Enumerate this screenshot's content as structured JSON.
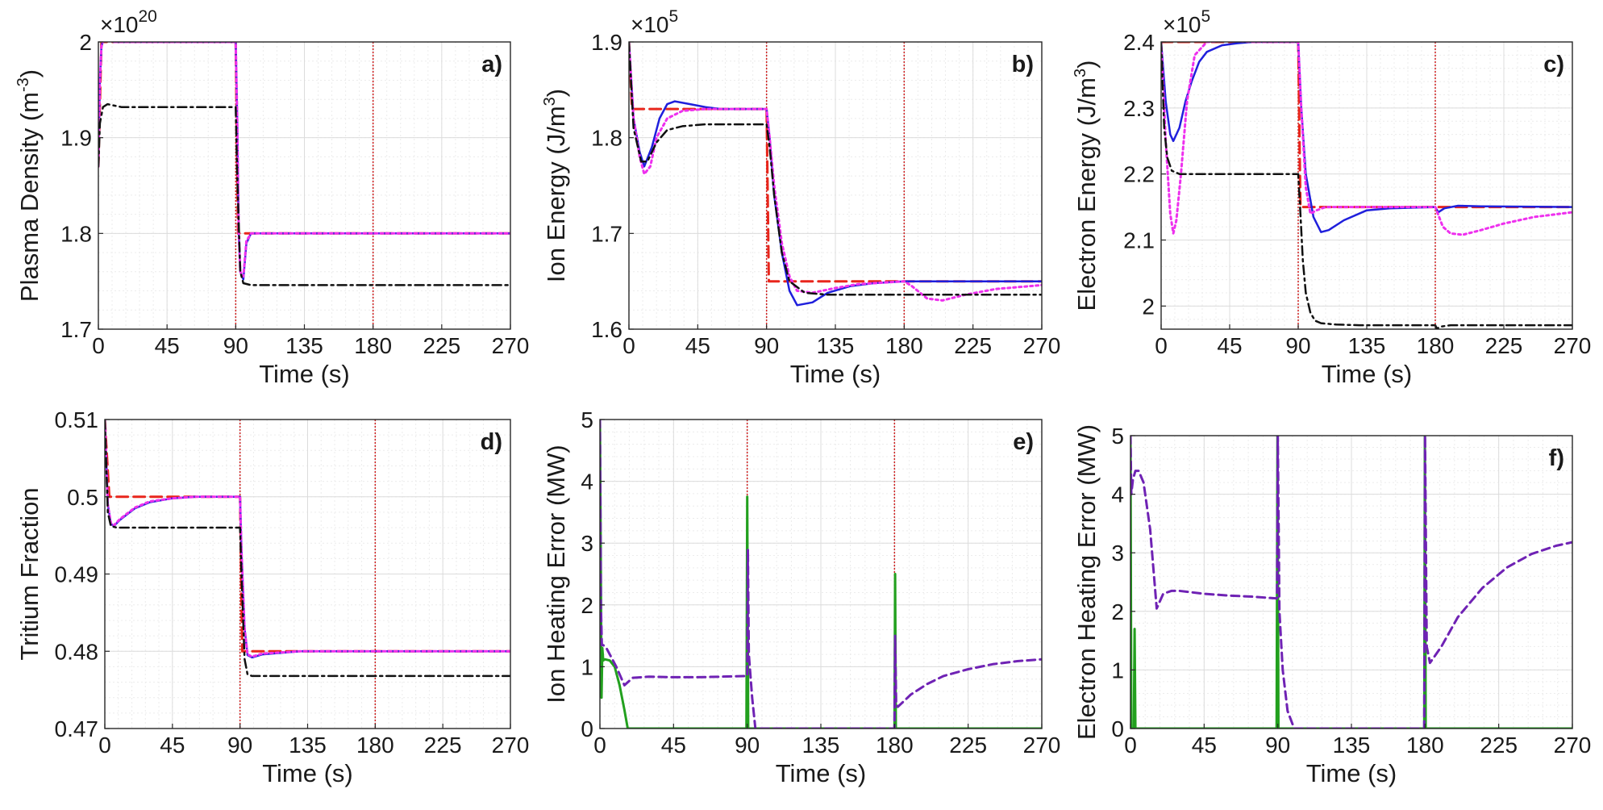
{
  "colors": {
    "reference": "#e8261c",
    "controller_blue": "#1f1fdc",
    "controller_magenta": "#ee30ee",
    "black_dashdot": "#111111",
    "green": "#22a01e",
    "purple": "#6f22b4",
    "event_line": "#d02020"
  },
  "chart_data": [
    {
      "id": "a",
      "type": "line",
      "panel_label": "a)",
      "xlabel": "Time (s)",
      "ylabel_parts": [
        "Plasma Density (m",
        "-3",
        ")"
      ],
      "exponent_label": [
        "×10",
        "20"
      ],
      "xlim": [
        0,
        270
      ],
      "ylim": [
        1.7,
        2.0
      ],
      "xticks": [
        0,
        45,
        90,
        135,
        180,
        225,
        270
      ],
      "yticks": [
        1.7,
        1.8,
        1.9,
        2.0
      ],
      "ytick_labels": [
        "1.7",
        "1.8",
        "1.9",
        "2"
      ],
      "event_lines": [
        90,
        180
      ],
      "series": [
        {
          "name": "reference",
          "color": "#e8261c",
          "dash": "14,7",
          "width": 3,
          "x": [
            0,
            2,
            90,
            91.5,
            270
          ],
          "y": [
            1.87,
            2.0,
            2.0,
            1.8,
            1.8
          ]
        },
        {
          "name": "controller_blue",
          "color": "#1f1fdc",
          "dash": "",
          "width": 2.5,
          "x": [
            0,
            1,
            2,
            4,
            6,
            10,
            20,
            90,
            91,
            92,
            93,
            95,
            97,
            100,
            270
          ],
          "y": [
            1.87,
            1.96,
            1.995,
            2.007,
            2.003,
            2.0,
            2.0,
            2.0,
            1.92,
            1.8,
            1.76,
            1.752,
            1.79,
            1.8,
            1.8
          ]
        },
        {
          "name": "controller_magenta",
          "color": "#ee30ee",
          "dash": "3,4",
          "width": 3,
          "x": [
            0,
            1,
            2,
            4,
            6,
            10,
            20,
            90,
            91,
            92,
            93,
            95,
            97,
            100,
            270
          ],
          "y": [
            1.87,
            1.96,
            1.995,
            2.005,
            2.002,
            2.0,
            2.0,
            2.0,
            1.92,
            1.8,
            1.76,
            1.755,
            1.792,
            1.8,
            1.8
          ]
        },
        {
          "name": "black_dashdot",
          "color": "#111111",
          "dash": "11,5,3,5",
          "width": 2.5,
          "x": [
            0,
            1,
            3,
            6,
            15,
            90,
            91,
            93,
            95,
            100,
            270
          ],
          "y": [
            1.87,
            1.915,
            1.932,
            1.935,
            1.932,
            1.932,
            1.86,
            1.76,
            1.748,
            1.746,
            1.746
          ]
        }
      ]
    },
    {
      "id": "b",
      "type": "line",
      "panel_label": "b)",
      "xlabel": "Time (s)",
      "ylabel_parts": [
        "Ion Energy (J/m",
        "3",
        ")"
      ],
      "exponent_label": [
        "×10",
        "5"
      ],
      "xlim": [
        0,
        270
      ],
      "ylim": [
        1.6,
        1.9
      ],
      "xticks": [
        0,
        45,
        90,
        135,
        180,
        225,
        270
      ],
      "yticks": [
        1.6,
        1.7,
        1.8,
        1.9
      ],
      "ytick_labels": [
        "1.6",
        "1.7",
        "1.8",
        "1.9"
      ],
      "event_lines": [
        90,
        180
      ],
      "series": [
        {
          "name": "reference",
          "color": "#e8261c",
          "dash": "14,7",
          "width": 3,
          "x": [
            0,
            2,
            90,
            91.5,
            270
          ],
          "y": [
            1.9,
            1.83,
            1.83,
            1.65,
            1.65
          ]
        },
        {
          "name": "controller_blue",
          "color": "#1f1fdc",
          "dash": "",
          "width": 2.5,
          "x": [
            0,
            3,
            7,
            10,
            15,
            20,
            25,
            30,
            40,
            50,
            60,
            90,
            92,
            95,
            100,
            105,
            110,
            120,
            130,
            145,
            160,
            180,
            270
          ],
          "y": [
            1.9,
            1.82,
            1.785,
            1.77,
            1.79,
            1.82,
            1.835,
            1.838,
            1.835,
            1.832,
            1.83,
            1.83,
            1.8,
            1.74,
            1.68,
            1.64,
            1.625,
            1.628,
            1.638,
            1.645,
            1.648,
            1.65,
            1.65
          ]
        },
        {
          "name": "controller_magenta",
          "color": "#ee30ee",
          "dash": "3,4",
          "width": 3,
          "x": [
            0,
            3,
            7,
            10,
            14,
            18,
            25,
            35,
            50,
            90,
            92,
            95,
            100,
            105,
            110,
            120,
            135,
            150,
            180,
            185,
            195,
            205,
            220,
            240,
            270
          ],
          "y": [
            1.9,
            1.82,
            1.78,
            1.762,
            1.77,
            1.8,
            1.82,
            1.828,
            1.83,
            1.83,
            1.8,
            1.75,
            1.69,
            1.655,
            1.64,
            1.638,
            1.643,
            1.647,
            1.65,
            1.645,
            1.632,
            1.63,
            1.636,
            1.642,
            1.646
          ]
        },
        {
          "name": "black_dashdot",
          "color": "#111111",
          "dash": "11,5,3,5",
          "width": 2.5,
          "x": [
            0,
            3,
            8,
            12,
            18,
            25,
            35,
            50,
            90,
            92,
            95,
            100,
            105,
            115,
            130,
            180,
            270
          ],
          "y": [
            1.9,
            1.81,
            1.775,
            1.775,
            1.795,
            1.808,
            1.812,
            1.814,
            1.814,
            1.79,
            1.74,
            1.68,
            1.65,
            1.638,
            1.636,
            1.636,
            1.636
          ]
        }
      ]
    },
    {
      "id": "c",
      "type": "line",
      "panel_label": "c)",
      "xlabel": "Time (s)",
      "ylabel_parts": [
        "Electron Energy (J/m",
        "3",
        ")"
      ],
      "exponent_label": [
        "×10",
        "5"
      ],
      "xlim": [
        0,
        270
      ],
      "ylim": [
        1.965,
        2.4
      ],
      "xticks": [
        0,
        45,
        90,
        135,
        180,
        225,
        270
      ],
      "yticks": [
        2.0,
        2.1,
        2.2,
        2.3,
        2.4
      ],
      "ytick_labels": [
        "2",
        "2.1",
        "2.2",
        "2.3",
        "2.4"
      ],
      "event_lines": [
        90,
        180
      ],
      "series": [
        {
          "name": "reference",
          "color": "#e8261c",
          "dash": "14,7",
          "width": 3,
          "x": [
            0,
            90,
            91.5,
            270
          ],
          "y": [
            2.4,
            2.4,
            2.15,
            2.15
          ]
        },
        {
          "name": "controller_blue",
          "color": "#1f1fdc",
          "dash": "",
          "width": 2.5,
          "x": [
            0,
            3,
            6,
            8,
            12,
            16,
            20,
            25,
            30,
            40,
            50,
            60,
            90,
            92,
            95,
            100,
            105,
            110,
            120,
            135,
            150,
            180,
            182,
            186,
            195,
            210,
            270
          ],
          "y": [
            2.4,
            2.31,
            2.26,
            2.25,
            2.27,
            2.31,
            2.34,
            2.37,
            2.385,
            2.395,
            2.398,
            2.4,
            2.4,
            2.3,
            2.2,
            2.135,
            2.112,
            2.115,
            2.13,
            2.145,
            2.148,
            2.15,
            2.142,
            2.148,
            2.152,
            2.151,
            2.15
          ]
        },
        {
          "name": "controller_magenta",
          "color": "#ee30ee",
          "dash": "3,4",
          "width": 3,
          "x": [
            0,
            3,
            6,
            8,
            10,
            13,
            17,
            22,
            30,
            45,
            60,
            90,
            92,
            95,
            98,
            102,
            108,
            120,
            150,
            180,
            185,
            190,
            198,
            210,
            225,
            245,
            270
          ],
          "y": [
            2.4,
            2.25,
            2.14,
            2.11,
            2.13,
            2.2,
            2.31,
            2.38,
            2.4,
            2.402,
            2.4,
            2.4,
            2.3,
            2.18,
            2.14,
            2.145,
            2.15,
            2.15,
            2.15,
            2.15,
            2.12,
            2.11,
            2.108,
            2.115,
            2.125,
            2.135,
            2.142
          ]
        },
        {
          "name": "black_dashdot",
          "color": "#111111",
          "dash": "11,5,3,5",
          "width": 2.5,
          "x": [
            0,
            2,
            4,
            7,
            12,
            20,
            90,
            91,
            93,
            95,
            98,
            101,
            105,
            115,
            130,
            180,
            181,
            184,
            190,
            270
          ],
          "y": [
            2.4,
            2.27,
            2.225,
            2.205,
            2.2,
            2.2,
            2.2,
            2.16,
            2.07,
            2.02,
            1.99,
            1.978,
            1.974,
            1.972,
            1.971,
            1.971,
            1.966,
            1.969,
            1.971,
            1.971
          ]
        }
      ]
    },
    {
      "id": "d",
      "type": "line",
      "panel_label": "d)",
      "xlabel": "Time (s)",
      "ylabel_parts": [
        "Tritium Fraction"
      ],
      "exponent_label": [],
      "xlim": [
        0,
        270
      ],
      "ylim": [
        0.47,
        0.51
      ],
      "xticks": [
        0,
        45,
        90,
        135,
        180,
        225,
        270
      ],
      "yticks": [
        0.47,
        0.48,
        0.49,
        0.5,
        0.51
      ],
      "ytick_labels": [
        "0.47",
        "0.48",
        "0.49",
        "0.5",
        "0.51"
      ],
      "event_lines": [
        90,
        180
      ],
      "series": [
        {
          "name": "reference",
          "color": "#e8261c",
          "dash": "14,7",
          "width": 3,
          "x": [
            0,
            3,
            90,
            91.5,
            270
          ],
          "y": [
            0.51,
            0.5,
            0.5,
            0.48,
            0.48
          ]
        },
        {
          "name": "controller_blue",
          "color": "#1f1fdc",
          "dash": "",
          "width": 2.5,
          "x": [
            0,
            2,
            4,
            6,
            10,
            20,
            30,
            45,
            60,
            75,
            90,
            91,
            93,
            95,
            98,
            105,
            130,
            270
          ],
          "y": [
            0.51,
            0.499,
            0.4965,
            0.4962,
            0.497,
            0.4985,
            0.4993,
            0.4998,
            0.5,
            0.5,
            0.5,
            0.493,
            0.483,
            0.4795,
            0.4792,
            0.4796,
            0.48,
            0.48
          ]
        },
        {
          "name": "controller_magenta",
          "color": "#ee30ee",
          "dash": "3,4",
          "width": 3,
          "x": [
            0,
            2,
            4,
            6,
            10,
            20,
            30,
            45,
            60,
            75,
            90,
            91,
            93,
            95,
            98,
            105,
            130,
            270
          ],
          "y": [
            0.51,
            0.499,
            0.4966,
            0.4963,
            0.4971,
            0.4986,
            0.4994,
            0.4998,
            0.5,
            0.5,
            0.5,
            0.493,
            0.483,
            0.4796,
            0.4793,
            0.4797,
            0.48,
            0.48
          ]
        },
        {
          "name": "black_dashdot",
          "color": "#111111",
          "dash": "11,5,3,5",
          "width": 2.5,
          "x": [
            0,
            2,
            4,
            8,
            90,
            91,
            93,
            95,
            98,
            270
          ],
          "y": [
            0.51,
            0.498,
            0.4962,
            0.496,
            0.496,
            0.49,
            0.479,
            0.477,
            0.4768,
            0.4768
          ]
        }
      ]
    },
    {
      "id": "e",
      "type": "line",
      "panel_label": "e)",
      "xlabel": "Time (s)",
      "ylabel_parts": [
        "Ion Heating Error (MW)"
      ],
      "exponent_label": [],
      "xlim": [
        0,
        270
      ],
      "ylim": [
        0,
        5
      ],
      "xticks": [
        0,
        45,
        90,
        135,
        180,
        225,
        270
      ],
      "yticks": [
        0,
        1,
        2,
        3,
        4,
        5
      ],
      "ytick_labels": [
        "0",
        "1",
        "2",
        "3",
        "4",
        "5"
      ],
      "event_lines": [
        90,
        180
      ],
      "series": [
        {
          "name": "green",
          "color": "#22a01e",
          "dash": "",
          "width": 3,
          "x": [
            0,
            0.5,
            1,
            1.5,
            2,
            3,
            6,
            9,
            12,
            15,
            17,
            89.5,
            90,
            90.6,
            91.2,
            180,
            180.4,
            180.8,
            181.5,
            270
          ],
          "y": [
            5,
            3,
            0.5,
            1.3,
            1.1,
            1.12,
            1.1,
            1.0,
            0.7,
            0.3,
            0,
            0,
            3.75,
            0,
            0,
            0,
            2.5,
            0,
            0,
            0
          ]
        },
        {
          "name": "purple",
          "color": "#6f22b4",
          "dash": "10,6",
          "width": 3,
          "x": [
            0,
            0.6,
            1.2,
            2,
            4,
            6,
            10,
            15,
            20,
            30,
            45,
            60,
            75,
            90,
            90.4,
            91,
            93,
            95,
            100,
            180,
            180.4,
            181,
            182,
            190,
            200,
            210,
            225,
            240,
            255,
            270
          ],
          "y": [
            5,
            2,
            1.35,
            1.35,
            1.3,
            1.2,
            1.0,
            0.7,
            0.82,
            0.84,
            0.83,
            0.83,
            0.84,
            0.85,
            2.9,
            1.2,
            0.5,
            0,
            0,
            0,
            1.5,
            0.4,
            0.35,
            0.55,
            0.72,
            0.85,
            0.96,
            1.04,
            1.09,
            1.12
          ]
        }
      ]
    },
    {
      "id": "f",
      "type": "line",
      "panel_label": "f)",
      "xlabel": "Time (s)",
      "ylabel_parts": [
        "Electron Heating Error (MW)"
      ],
      "exponent_label": [],
      "xlim": [
        0,
        270
      ],
      "ylim": [
        0,
        5
      ],
      "xticks": [
        0,
        45,
        90,
        135,
        180,
        225,
        270
      ],
      "yticks": [
        0,
        1,
        2,
        3,
        4,
        5
      ],
      "ytick_labels": [
        "0",
        "1",
        "2",
        "3",
        "4",
        "5"
      ],
      "event_lines": [],
      "series": [
        {
          "name": "green",
          "color": "#22a01e",
          "dash": "",
          "width": 3,
          "x": [
            0,
            0.5,
            1,
            2,
            2.5,
            3,
            3.5,
            89.3,
            89.8,
            90.4,
            91,
            179.5,
            179.9,
            180.4,
            181,
            270
          ],
          "y": [
            5,
            0,
            0,
            0,
            1.7,
            0,
            0,
            0,
            5,
            0,
            0,
            0,
            5,
            0,
            0,
            0
          ]
        },
        {
          "name": "purple",
          "color": "#6f22b4",
          "dash": "10,6",
          "width": 3,
          "x": [
            0,
            0.5,
            1.5,
            3,
            5,
            8,
            12,
            16,
            20,
            25,
            30,
            45,
            60,
            75,
            89.5,
            90,
            91,
            93,
            96,
            100,
            179.5,
            180,
            181,
            183,
            190,
            200,
            215,
            230,
            245,
            260,
            270
          ],
          "y": [
            5,
            4.0,
            4.25,
            4.4,
            4.4,
            4.2,
            3.4,
            2.05,
            2.3,
            2.35,
            2.35,
            2.3,
            2.27,
            2.25,
            2.22,
            5,
            2.0,
            1.0,
            0.3,
            0,
            0,
            5,
            1.4,
            1.12,
            1.4,
            1.9,
            2.4,
            2.75,
            2.98,
            3.12,
            3.18
          ]
        }
      ]
    }
  ]
}
